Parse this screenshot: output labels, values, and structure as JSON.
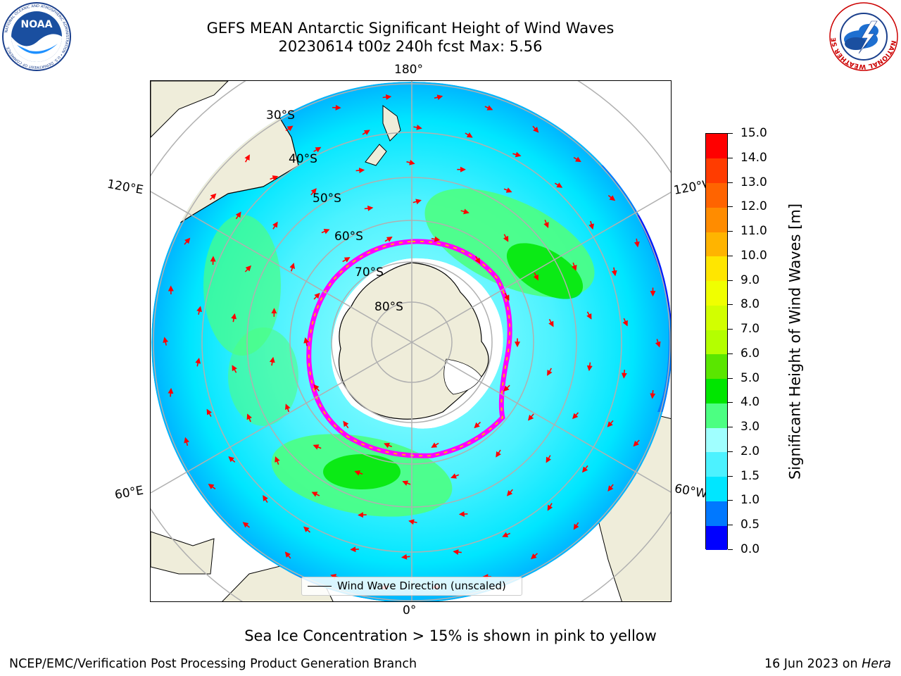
{
  "title": {
    "line1": "GEFS MEAN Antarctic Significant Height of Wind Waves",
    "line2": "20230614 t00z 240h fcst   Max: 5.56"
  },
  "map": {
    "projection": "south polar stereographic",
    "longitude_labels": [
      "180°",
      "120°E",
      "60°E",
      "0°",
      "60°W",
      "120°W"
    ],
    "latitude_labels": [
      "30°S",
      "40°S",
      "50°S",
      "60°S",
      "70°S",
      "80°S"
    ],
    "legend_label": "Wind Wave Direction (unscaled)",
    "arrow_color": "#ff0000",
    "land_color": "#efedda",
    "sea_ice_note": "Sea Ice Concentration > 15% is shown in pink to yellow",
    "ice_color_low": "#ff00ff",
    "ice_color_high": "#ffff00"
  },
  "colorbar": {
    "title": "Significant Height of Wind Waves [m]",
    "tick_labels": [
      "0.0",
      "0.5",
      "1.0",
      "1.5",
      "2.0",
      "3.0",
      "4.0",
      "5.0",
      "6.0",
      "7.0",
      "8.0",
      "9.0",
      "10.0",
      "11.0",
      "12.0",
      "13.0",
      "14.0",
      "15.0"
    ],
    "colors": [
      "#0000ff",
      "#0078ff",
      "#00e6ff",
      "#4cf2ff",
      "#a0ffff",
      "#4cff82",
      "#00e600",
      "#5ae600",
      "#b4ff00",
      "#d2ff00",
      "#f0ff00",
      "#ffe600",
      "#ffb400",
      "#ff8c00",
      "#ff6400",
      "#ff3c00",
      "#ff0000"
    ]
  },
  "footer": {
    "left": "NCEP/EMC/Verification Post Processing Product Generation Branch",
    "date": "16 Jun 2023 on ",
    "machine": "Hera"
  },
  "logos": {
    "noaa": "NOAA",
    "noaa_ring": "NATIONAL OCEANIC AND ATMOSPHERIC ADMINISTRATION • U.S. DEPARTMENT OF COMMERCE",
    "nws_ring": "NATIONAL WEATHER SERVICE"
  }
}
